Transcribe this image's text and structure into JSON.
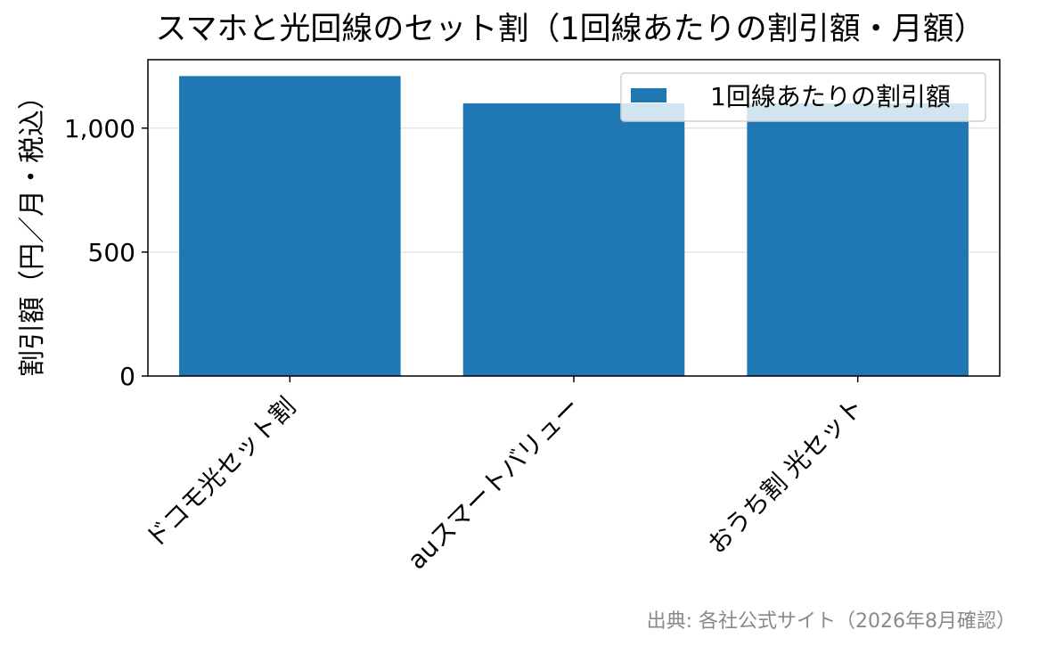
{
  "chart_data": {
    "type": "bar",
    "title": "スマホと光回線のセット割（1回線あたりの割引額・月額）",
    "xlabel": "",
    "ylabel": "割引額（円／月・税込）",
    "categories": [
      "ドコモ光セット割",
      "auスマートバリュー",
      "おうち割 光セット"
    ],
    "series": [
      {
        "name": "1回線あたりの割引額",
        "values": [
          1210,
          1100,
          1100
        ],
        "color": "#1f77b4"
      }
    ],
    "ylim": [
      0,
      1276
    ],
    "yticks": [
      0,
      500,
      1000
    ],
    "ytick_labels": [
      "0",
      "500",
      "1,000"
    ],
    "grid": "y-axis horizontal lines",
    "legend": "upper-right",
    "x_tick_rotation": "45 degrees",
    "source": "出典: 各社公式サイト（2026年8月確認）"
  }
}
